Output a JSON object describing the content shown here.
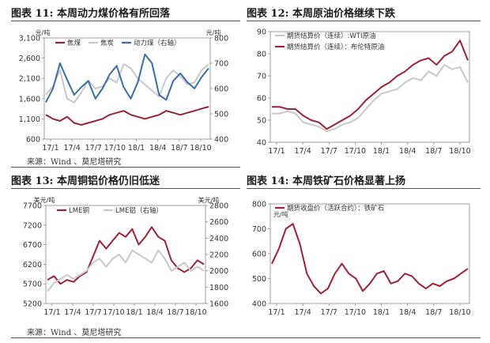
{
  "panels": [
    {
      "title": "图表 11:  本周动力煤价格有所回落"
    },
    {
      "title": "图表 12:  本周原油价格继续下跌"
    },
    {
      "title": "图表 13:  本周铜铝价格仍旧低迷"
    },
    {
      "title": "图表 14:  本周铁矿石价格显著上扬"
    }
  ],
  "sources": {
    "top": "来源：Wind  、莫尼塔研究",
    "bottom": "来源：Wind  、莫尼塔研究"
  },
  "colors": {
    "red": "#9b2335",
    "gray": "#c8c8c8",
    "blue": "#3a6ea5"
  },
  "chart_data": [
    {
      "type": "line",
      "x_ticks": [
        "17/1",
        "17/4",
        "17/7",
        "17/10",
        "18/1",
        "18/4",
        "18/7",
        "18/10"
      ],
      "y_left_unit": "元/吨",
      "y_right_unit": "元/吨",
      "y_left_ticks": [
        "3,100",
        "2,600",
        "2,100",
        "1,600",
        "1,100",
        "600"
      ],
      "y_right_ticks": [
        "800",
        "700",
        "600",
        "500",
        "400"
      ],
      "ylim_left": [
        600,
        3100
      ],
      "ylim_right": [
        400,
        800
      ],
      "legend": [
        "焦煤",
        "焦炭",
        "动力煤（右轴）"
      ],
      "legend_position": "top",
      "series": [
        {
          "name": "焦煤",
          "axis": "left",
          "color": "#9b2335",
          "values": [
            1200,
            1100,
            1050,
            1150,
            1000,
            950,
            1000,
            1050,
            1100,
            1200,
            1250,
            1300,
            1200,
            1150,
            1100,
            1150,
            1200,
            1300,
            1250,
            1200,
            1250,
            1300,
            1350,
            1400
          ]
        },
        {
          "name": "焦炭",
          "axis": "left",
          "color": "#c8c8c8",
          "values": [
            1700,
            1900,
            2300,
            1600,
            1500,
            1750,
            2050,
            1850,
            1900,
            2100,
            2000,
            2450,
            2350,
            2100,
            1950,
            1800,
            1650,
            2100,
            2300,
            2150,
            1950,
            2000,
            2300,
            2450
          ]
        },
        {
          "name": "动力煤（右轴）",
          "axis": "right",
          "color": "#3a6ea5",
          "values": [
            545,
            600,
            700,
            635,
            575,
            605,
            630,
            560,
            600,
            655,
            690,
            605,
            560,
            625,
            735,
            700,
            575,
            555,
            630,
            660,
            625,
            600,
            645,
            680
          ]
        }
      ]
    },
    {
      "type": "line",
      "x_ticks": [
        "17/1",
        "17/4",
        "17/7",
        "17/10",
        "18/1",
        "18/4",
        "18/7",
        "18/10"
      ],
      "y_ticks": [
        "90",
        "80",
        "70",
        "60",
        "50",
        "40"
      ],
      "ylim": [
        40,
        90
      ],
      "legend": [
        "期货结算价（连续）:WTI原油",
        "期货结算价（连续）：布伦特原油"
      ],
      "legend_position": "top-left",
      "series": [
        {
          "name": "期货结算价（连续）:WTI原油",
          "color": "#c8c8c8",
          "values": [
            53,
            53,
            54,
            53,
            49,
            48,
            47,
            45,
            46,
            48,
            49,
            51,
            55,
            59,
            62,
            63,
            64,
            67,
            69,
            68,
            72,
            70,
            75,
            73,
            74,
            67
          ]
        },
        {
          "name": "期货结算价（连续）：布伦特原油",
          "color": "#9b2335",
          "values": [
            56,
            56,
            55,
            55,
            52,
            50,
            49,
            46,
            48,
            50,
            52,
            55,
            59,
            62,
            65,
            67,
            70,
            72,
            75,
            77,
            78,
            75,
            79,
            81,
            86,
            77
          ]
        }
      ]
    },
    {
      "type": "line",
      "x_ticks": [
        "17/1",
        "17/4",
        "17/7",
        "17/10",
        "18/1",
        "18/4",
        "18/7",
        "18/10"
      ],
      "y_left_unit": "美元/吨",
      "y_right_unit": "美元/吨",
      "y_left_ticks": [
        "7700",
        "7200",
        "6700",
        "6200",
        "5700",
        "5200"
      ],
      "y_right_ticks": [
        "2800",
        "2600",
        "2400",
        "2200",
        "2000",
        "1800",
        "1600"
      ],
      "ylim_left": [
        5200,
        7700
      ],
      "ylim_right": [
        1600,
        2800
      ],
      "legend": [
        "LME铜",
        "LME铝（右轴）"
      ],
      "legend_position": "top",
      "series": [
        {
          "name": "LME铜",
          "axis": "left",
          "color": "#9b2335",
          "values": [
            5800,
            5900,
            5700,
            5800,
            5750,
            5900,
            6000,
            6400,
            6800,
            6600,
            6800,
            7000,
            6900,
            7100,
            6700,
            6900,
            7150,
            6900,
            6800,
            6300,
            6100,
            6000,
            6100,
            6300,
            6200
          ]
        },
        {
          "name": "LME铝（右轴）",
          "axis": "right",
          "color": "#c8c8c8",
          "values": [
            1750,
            1850,
            1900,
            1950,
            1900,
            1950,
            2000,
            2100,
            2150,
            2050,
            2150,
            2200,
            2100,
            2250,
            2200,
            2150,
            2100,
            2250,
            2150,
            2000,
            2050,
            2100,
            2000,
            2050,
            2000
          ]
        }
      ]
    },
    {
      "type": "line",
      "x_ticks": [
        "17/1",
        "17/4",
        "17/7",
        "17/10",
        "18/1",
        "18/4",
        "18/7",
        "18/10"
      ],
      "y_unit": "元/吨",
      "y_ticks": [
        "800",
        "700",
        "600",
        "500",
        "400"
      ],
      "ylim": [
        400,
        800
      ],
      "legend": [
        "期货收盘价（活跃合约）：铁矿石"
      ],
      "legend_position": "top-left",
      "series": [
        {
          "name": "期货收盘价（活跃合约）：铁矿石",
          "color": "#9b2335",
          "values": [
            560,
            620,
            700,
            720,
            640,
            520,
            470,
            440,
            460,
            520,
            560,
            520,
            500,
            450,
            480,
            520,
            530,
            480,
            490,
            520,
            510,
            480,
            460,
            480,
            470,
            490,
            500,
            520,
            540
          ]
        }
      ]
    }
  ]
}
